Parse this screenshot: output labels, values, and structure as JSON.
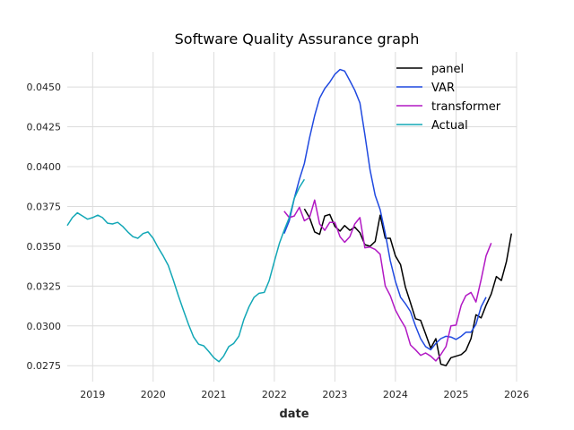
{
  "chart_data": {
    "type": "line",
    "title": "Software Quality Assurance graph",
    "xlabel": "date",
    "ylabel": "",
    "xlim": [
      "2018-08-01",
      "2026-01-01"
    ],
    "ylim": [
      0.0265,
      0.0472
    ],
    "x_ticks": [
      "2019",
      "2020",
      "2021",
      "2022",
      "2023",
      "2024",
      "2025",
      "2026"
    ],
    "y_ticks": [
      "0.0275",
      "0.0300",
      "0.0325",
      "0.0350",
      "0.0375",
      "0.0400",
      "0.0425",
      "0.0450"
    ],
    "grid": true,
    "legend_position": "top-right",
    "series": [
      {
        "name": "panel",
        "color": "#000000",
        "points": [
          [
            "2022-07-01",
            0.03735
          ],
          [
            "2022-08-01",
            0.0368
          ],
          [
            "2022-09-01",
            0.0359
          ],
          [
            "2022-10-01",
            0.03575
          ],
          [
            "2022-11-01",
            0.0369
          ],
          [
            "2022-12-01",
            0.037
          ],
          [
            "2023-01-01",
            0.03625
          ],
          [
            "2023-02-01",
            0.03595
          ],
          [
            "2023-03-01",
            0.0363
          ],
          [
            "2023-04-01",
            0.036
          ],
          [
            "2023-05-01",
            0.0362
          ],
          [
            "2023-06-01",
            0.03585
          ],
          [
            "2023-07-01",
            0.0351
          ],
          [
            "2023-08-01",
            0.035
          ],
          [
            "2023-09-01",
            0.0353
          ],
          [
            "2023-10-01",
            0.03695
          ],
          [
            "2023-11-01",
            0.0355
          ],
          [
            "2023-12-01",
            0.0355
          ],
          [
            "2024-01-01",
            0.0344
          ],
          [
            "2024-02-01",
            0.03385
          ],
          [
            "2024-03-01",
            0.03245
          ],
          [
            "2024-04-01",
            0.03145
          ],
          [
            "2024-05-01",
            0.03045
          ],
          [
            "2024-06-01",
            0.03035
          ],
          [
            "2024-07-01",
            0.0295
          ],
          [
            "2024-08-01",
            0.0286
          ],
          [
            "2024-09-01",
            0.0292
          ],
          [
            "2024-10-01",
            0.0276
          ],
          [
            "2024-11-01",
            0.0275
          ],
          [
            "2024-12-01",
            0.028
          ],
          [
            "2025-01-01",
            0.0281
          ],
          [
            "2025-02-01",
            0.0282
          ],
          [
            "2025-03-01",
            0.02845
          ],
          [
            "2025-04-01",
            0.0292
          ],
          [
            "2025-05-01",
            0.0307
          ],
          [
            "2025-06-01",
            0.0305
          ],
          [
            "2025-07-01",
            0.0313
          ],
          [
            "2025-08-01",
            0.032
          ],
          [
            "2025-09-01",
            0.0331
          ],
          [
            "2025-10-01",
            0.03285
          ],
          [
            "2025-11-01",
            0.03405
          ],
          [
            "2025-12-01",
            0.0358
          ]
        ]
      },
      {
        "name": "VAR",
        "color": "#1f49e0",
        "points": [
          [
            "2022-03-01",
            0.0358
          ],
          [
            "2022-04-01",
            0.0366
          ],
          [
            "2022-05-01",
            0.038
          ],
          [
            "2022-06-01",
            0.0392
          ],
          [
            "2022-07-01",
            0.0402
          ],
          [
            "2022-08-01",
            0.0418
          ],
          [
            "2022-09-01",
            0.0432
          ],
          [
            "2022-10-01",
            0.0443
          ],
          [
            "2022-11-01",
            0.0449
          ],
          [
            "2022-12-01",
            0.0453
          ],
          [
            "2023-01-01",
            0.0458
          ],
          [
            "2023-02-01",
            0.0461
          ],
          [
            "2023-03-01",
            0.046
          ],
          [
            "2023-04-01",
            0.0454
          ],
          [
            "2023-05-01",
            0.0448
          ],
          [
            "2023-06-01",
            0.044
          ],
          [
            "2023-07-01",
            0.042
          ],
          [
            "2023-08-01",
            0.0398
          ],
          [
            "2023-09-01",
            0.0382
          ],
          [
            "2023-10-01",
            0.0373
          ],
          [
            "2023-11-01",
            0.0358
          ],
          [
            "2023-12-01",
            0.0341
          ],
          [
            "2024-01-01",
            0.0328
          ],
          [
            "2024-02-01",
            0.0318
          ],
          [
            "2024-03-01",
            0.0314
          ],
          [
            "2024-04-01",
            0.0309
          ],
          [
            "2024-05-01",
            0.03
          ],
          [
            "2024-06-01",
            0.0292
          ],
          [
            "2024-07-01",
            0.0287
          ],
          [
            "2024-08-01",
            0.0285
          ],
          [
            "2024-09-01",
            0.0289
          ],
          [
            "2024-10-01",
            0.0292
          ],
          [
            "2024-11-01",
            0.02935
          ],
          [
            "2024-12-01",
            0.0293
          ],
          [
            "2025-01-01",
            0.02915
          ],
          [
            "2025-02-01",
            0.02935
          ],
          [
            "2025-03-01",
            0.0296
          ],
          [
            "2025-04-01",
            0.0296
          ],
          [
            "2025-05-01",
            0.0301
          ],
          [
            "2025-06-01",
            0.0312
          ],
          [
            "2025-07-01",
            0.0318
          ]
        ]
      },
      {
        "name": "transformer",
        "color": "#b219c4",
        "points": [
          [
            "2022-03-01",
            0.0372
          ],
          [
            "2022-04-01",
            0.0368
          ],
          [
            "2022-05-01",
            0.0369
          ],
          [
            "2022-06-01",
            0.03745
          ],
          [
            "2022-07-01",
            0.0366
          ],
          [
            "2022-08-01",
            0.0368
          ],
          [
            "2022-09-01",
            0.0379
          ],
          [
            "2022-10-01",
            0.0364
          ],
          [
            "2022-11-01",
            0.036
          ],
          [
            "2022-12-01",
            0.0365
          ],
          [
            "2023-01-01",
            0.0365
          ],
          [
            "2023-02-01",
            0.0356
          ],
          [
            "2023-03-01",
            0.03525
          ],
          [
            "2023-04-01",
            0.0356
          ],
          [
            "2023-05-01",
            0.0364
          ],
          [
            "2023-06-01",
            0.0368
          ],
          [
            "2023-07-01",
            0.0349
          ],
          [
            "2023-08-01",
            0.03495
          ],
          [
            "2023-09-01",
            0.0348
          ],
          [
            "2023-10-01",
            0.0345
          ],
          [
            "2023-11-01",
            0.0325
          ],
          [
            "2023-12-01",
            0.0319
          ],
          [
            "2024-01-01",
            0.031
          ],
          [
            "2024-02-01",
            0.0304
          ],
          [
            "2024-03-01",
            0.0299
          ],
          [
            "2024-04-01",
            0.0288
          ],
          [
            "2024-05-01",
            0.0285
          ],
          [
            "2024-06-01",
            0.02815
          ],
          [
            "2024-07-01",
            0.0283
          ],
          [
            "2024-08-01",
            0.0281
          ],
          [
            "2024-09-01",
            0.0278
          ],
          [
            "2024-10-01",
            0.0282
          ],
          [
            "2024-11-01",
            0.0287
          ],
          [
            "2024-12-01",
            0.03
          ],
          [
            "2025-01-01",
            0.03005
          ],
          [
            "2025-02-01",
            0.0313
          ],
          [
            "2025-03-01",
            0.0319
          ],
          [
            "2025-04-01",
            0.0321
          ],
          [
            "2025-05-01",
            0.0315
          ],
          [
            "2025-06-01",
            0.0329
          ],
          [
            "2025-07-01",
            0.0344
          ],
          [
            "2025-08-01",
            0.0352
          ]
        ]
      },
      {
        "name": "Actual",
        "color": "#12a7b6",
        "points": [
          [
            "2018-08-01",
            0.0363
          ],
          [
            "2018-09-01",
            0.0368
          ],
          [
            "2018-10-01",
            0.0371
          ],
          [
            "2018-11-01",
            0.0369
          ],
          [
            "2018-12-01",
            0.0367
          ],
          [
            "2019-01-01",
            0.0368
          ],
          [
            "2019-02-01",
            0.03695
          ],
          [
            "2019-03-01",
            0.0368
          ],
          [
            "2019-04-01",
            0.03645
          ],
          [
            "2019-05-01",
            0.0364
          ],
          [
            "2019-06-01",
            0.0365
          ],
          [
            "2019-07-01",
            0.03625
          ],
          [
            "2019-08-01",
            0.0359
          ],
          [
            "2019-09-01",
            0.0356
          ],
          [
            "2019-10-01",
            0.0355
          ],
          [
            "2019-11-01",
            0.0358
          ],
          [
            "2019-12-01",
            0.0359
          ],
          [
            "2020-01-01",
            0.0355
          ],
          [
            "2020-02-01",
            0.0349
          ],
          [
            "2020-03-01",
            0.0344
          ],
          [
            "2020-04-01",
            0.0338
          ],
          [
            "2020-05-01",
            0.0329
          ],
          [
            "2020-06-01",
            0.0319
          ],
          [
            "2020-07-01",
            0.031
          ],
          [
            "2020-08-01",
            0.0301
          ],
          [
            "2020-09-01",
            0.0293
          ],
          [
            "2020-10-01",
            0.02885
          ],
          [
            "2020-11-01",
            0.02875
          ],
          [
            "2020-12-01",
            0.0284
          ],
          [
            "2021-01-01",
            0.028
          ],
          [
            "2021-02-01",
            0.02775
          ],
          [
            "2021-03-01",
            0.0281
          ],
          [
            "2021-04-01",
            0.0287
          ],
          [
            "2021-05-01",
            0.0289
          ],
          [
            "2021-06-01",
            0.02935
          ],
          [
            "2021-07-01",
            0.0304
          ],
          [
            "2021-08-01",
            0.0312
          ],
          [
            "2021-09-01",
            0.0318
          ],
          [
            "2021-10-01",
            0.03205
          ],
          [
            "2021-11-01",
            0.0321
          ],
          [
            "2021-12-01",
            0.03285
          ],
          [
            "2022-01-01",
            0.03405
          ],
          [
            "2022-02-01",
            0.0352
          ],
          [
            "2022-03-01",
            0.036
          ],
          [
            "2022-04-01",
            0.0368
          ],
          [
            "2022-05-01",
            0.038
          ],
          [
            "2022-06-01",
            0.0387
          ],
          [
            "2022-07-01",
            0.0392
          ]
        ]
      }
    ]
  }
}
